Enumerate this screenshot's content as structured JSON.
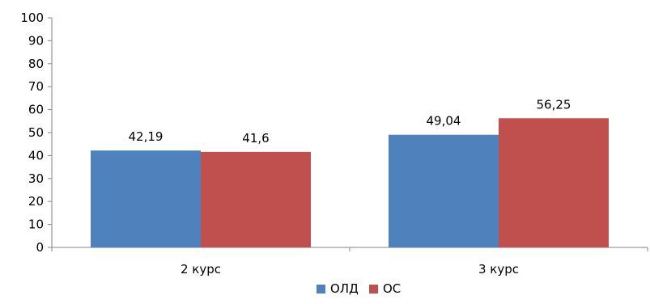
{
  "chart_data": {
    "type": "bar",
    "categories": [
      "2 курс",
      "3 курс"
    ],
    "series": [
      {
        "name": "ОЛД",
        "values": [
          42.19,
          49.04
        ],
        "labels": [
          "42,19",
          "49,04"
        ],
        "color": "#4F81BD"
      },
      {
        "name": "ОС",
        "values": [
          41.6,
          56.25
        ],
        "labels": [
          "41,6",
          "56,25"
        ],
        "color": "#C0504D"
      }
    ],
    "ylim": [
      0,
      100
    ],
    "yticks": [
      0,
      10,
      20,
      30,
      40,
      50,
      60,
      70,
      80,
      90,
      100
    ],
    "grid": false,
    "legend_position": "bottom"
  }
}
